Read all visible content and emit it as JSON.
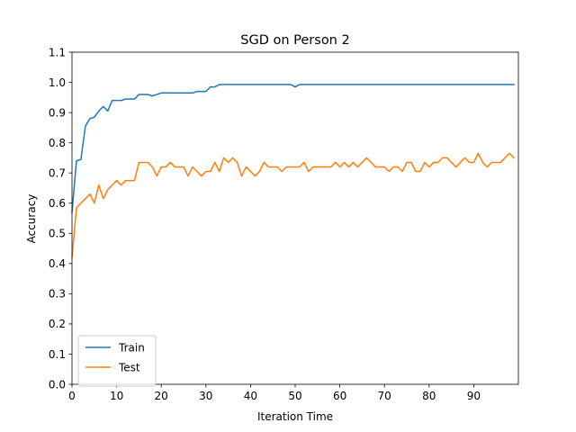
{
  "chart_data": {
    "type": "line",
    "title": "SGD on Person 2",
    "xlabel": "Iteration Time",
    "ylabel": "Accuracy",
    "xlim": [
      0,
      100
    ],
    "ylim": [
      0,
      1.1
    ],
    "xticks": [
      0,
      10,
      20,
      30,
      40,
      50,
      60,
      70,
      80,
      90
    ],
    "yticks": [
      0.0,
      0.1,
      0.2,
      0.3,
      0.4,
      0.5,
      0.6,
      0.7,
      0.8,
      0.9,
      1.0,
      1.1
    ],
    "grid": false,
    "legend": "lower-left",
    "series": [
      {
        "name": "Train",
        "color": "#1f77b4",
        "values": [
          0.57,
          0.74,
          0.745,
          0.855,
          0.88,
          0.885,
          0.905,
          0.92,
          0.905,
          0.94,
          0.94,
          0.94,
          0.945,
          0.945,
          0.945,
          0.96,
          0.96,
          0.96,
          0.955,
          0.96,
          0.965,
          0.965,
          0.965,
          0.965,
          0.965,
          0.965,
          0.965,
          0.965,
          0.97,
          0.97,
          0.97,
          0.985,
          0.985,
          0.993,
          0.993,
          0.993,
          0.993,
          0.993,
          0.993,
          0.993,
          0.993,
          0.993,
          0.993,
          0.993,
          0.993,
          0.993,
          0.993,
          0.993,
          0.993,
          0.993,
          0.985,
          0.993,
          0.993,
          0.993,
          0.993,
          0.993,
          0.993,
          0.993,
          0.993,
          0.993,
          0.993,
          0.993,
          0.993,
          0.993,
          0.993,
          0.993,
          0.993,
          0.993,
          0.993,
          0.993,
          0.993,
          0.993,
          0.993,
          0.993,
          0.993,
          0.993,
          0.993,
          0.993,
          0.993,
          0.993,
          0.993,
          0.993,
          0.993,
          0.993,
          0.993,
          0.993,
          0.993,
          0.993,
          0.993,
          0.993,
          0.993,
          0.993,
          0.993,
          0.993,
          0.993,
          0.993,
          0.993,
          0.993,
          0.993,
          0.993
        ]
      },
      {
        "name": "Test",
        "color": "#ff7f0e",
        "values": [
          0.42,
          0.585,
          0.6,
          0.615,
          0.63,
          0.6,
          0.66,
          0.615,
          0.645,
          0.66,
          0.675,
          0.66,
          0.675,
          0.675,
          0.675,
          0.735,
          0.735,
          0.735,
          0.72,
          0.69,
          0.72,
          0.72,
          0.735,
          0.72,
          0.72,
          0.72,
          0.69,
          0.72,
          0.705,
          0.69,
          0.705,
          0.705,
          0.735,
          0.705,
          0.75,
          0.735,
          0.75,
          0.735,
          0.69,
          0.72,
          0.705,
          0.69,
          0.705,
          0.735,
          0.72,
          0.72,
          0.72,
          0.705,
          0.72,
          0.72,
          0.72,
          0.72,
          0.735,
          0.705,
          0.72,
          0.72,
          0.72,
          0.72,
          0.72,
          0.735,
          0.72,
          0.735,
          0.72,
          0.735,
          0.72,
          0.735,
          0.75,
          0.735,
          0.72,
          0.72,
          0.72,
          0.705,
          0.72,
          0.72,
          0.705,
          0.735,
          0.735,
          0.705,
          0.705,
          0.735,
          0.72,
          0.735,
          0.735,
          0.75,
          0.75,
          0.735,
          0.72,
          0.735,
          0.75,
          0.735,
          0.735,
          0.765,
          0.735,
          0.72,
          0.735,
          0.735,
          0.735,
          0.75,
          0.765,
          0.75
        ]
      }
    ]
  }
}
